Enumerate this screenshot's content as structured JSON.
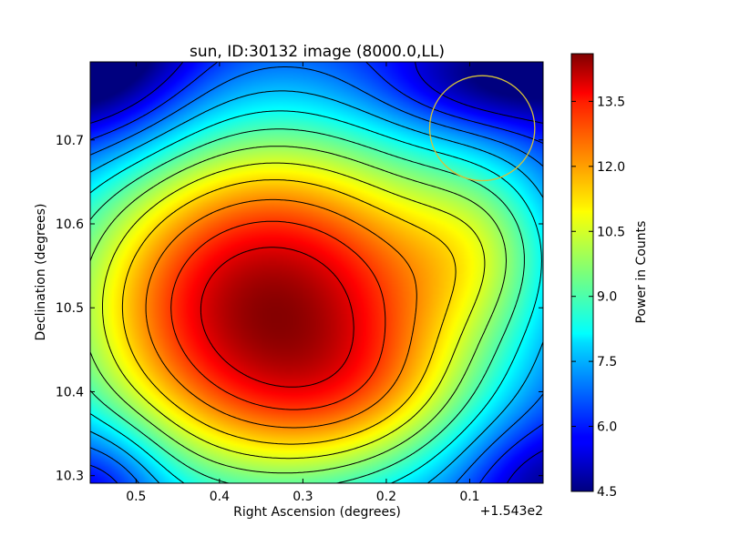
{
  "chart_data": {
    "type": "heatmap",
    "title": "sun, ID:30132 image (8000.0,LL)",
    "xlabel": "Right Ascension (degrees)",
    "ylabel": "Declination (degrees)",
    "x_offset_label": "+1.543e2",
    "xlim": [
      0.555,
      0.012
    ],
    "ylim": [
      10.291,
      10.793
    ],
    "x_ticks": [
      {
        "value": 0.5,
        "label": "0.5"
      },
      {
        "value": 0.4,
        "label": "0.4"
      },
      {
        "value": 0.3,
        "label": "0.3"
      },
      {
        "value": 0.2,
        "label": "0.2"
      },
      {
        "value": 0.1,
        "label": "0.1"
      }
    ],
    "y_ticks": [
      {
        "value": 10.3,
        "label": "10.3"
      },
      {
        "value": 10.4,
        "label": "10.4"
      },
      {
        "value": 10.5,
        "label": "10.5"
      },
      {
        "value": 10.6,
        "label": "10.6"
      },
      {
        "value": 10.7,
        "label": "10.7"
      }
    ],
    "colorbar": {
      "label": "Power in Counts",
      "range": [
        4.5,
        14.6
      ],
      "colormap": "jet",
      "ticks": [
        {
          "value": 4.5,
          "label": "4.5"
        },
        {
          "value": 6.0,
          "label": "6.0"
        },
        {
          "value": 7.5,
          "label": "7.5"
        },
        {
          "value": 9.0,
          "label": "9.0"
        },
        {
          "value": 10.5,
          "label": "10.5"
        },
        {
          "value": 12.0,
          "label": "12.0"
        },
        {
          "value": 13.5,
          "label": "13.5"
        }
      ]
    },
    "peak": {
      "ra": 0.3,
      "dec": 10.497,
      "value": 14.6
    },
    "minimum": {
      "ra": 0.555,
      "dec": 10.793,
      "value": 4.5
    },
    "contour_levels": [
      5.5,
      6.3,
      7.0,
      7.7,
      8.4,
      9.1,
      9.8,
      10.5,
      11.2,
      12.0,
      12.8,
      13.6
    ],
    "beam_circle": {
      "ra_center": 0.085,
      "dec_center": 10.714,
      "radius_deg": 0.063,
      "color": "#d4c13a"
    }
  }
}
